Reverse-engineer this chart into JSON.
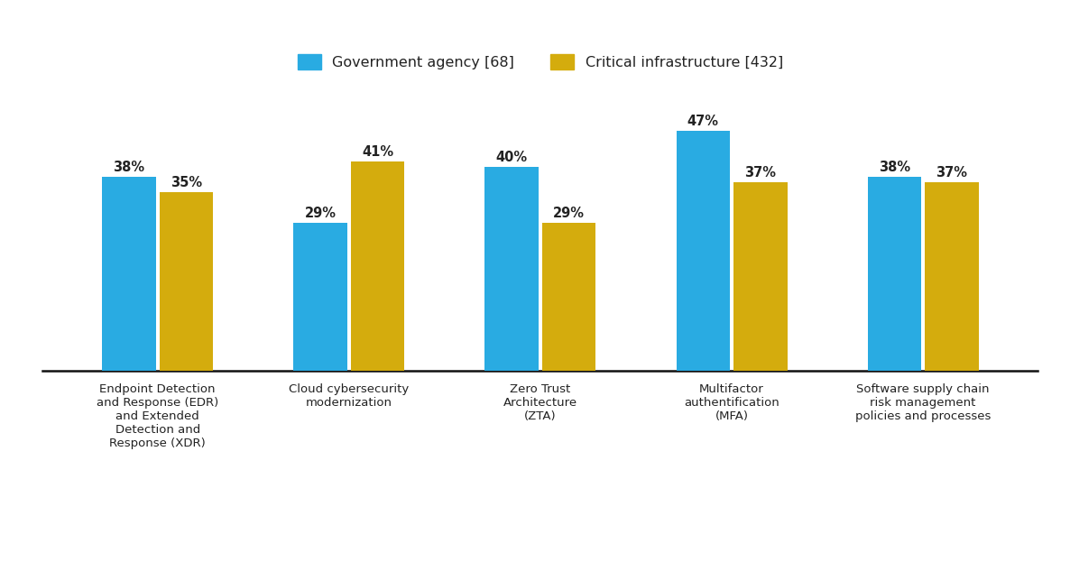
{
  "categories": [
    "Endpoint Detection\nand Response (EDR)\nand Extended\nDetection and\nResponse (XDR)",
    "Cloud cybersecurity\nmodernization",
    "Zero Trust\nArchitecture\n(ZTA)",
    "Multifactor\nauthentification\n(MFA)",
    "Software supply chain\nrisk management\npolicies and processes"
  ],
  "government_values": [
    38,
    29,
    40,
    47,
    38
  ],
  "critical_values": [
    35,
    41,
    29,
    37,
    37
  ],
  "government_color": "#29ABE2",
  "critical_color": "#D4AC0D",
  "legend_labels": [
    "Government agency [68]",
    "Critical infrastructure [432]"
  ],
  "bar_width": 0.28,
  "group_positions": [
    0,
    1,
    2,
    3,
    4
  ],
  "ylim": [
    0,
    55
  ],
  "background_color": "#FFFFFF",
  "tick_fontsize": 9.5,
  "value_fontsize": 10.5,
  "legend_fontsize": 11.5
}
